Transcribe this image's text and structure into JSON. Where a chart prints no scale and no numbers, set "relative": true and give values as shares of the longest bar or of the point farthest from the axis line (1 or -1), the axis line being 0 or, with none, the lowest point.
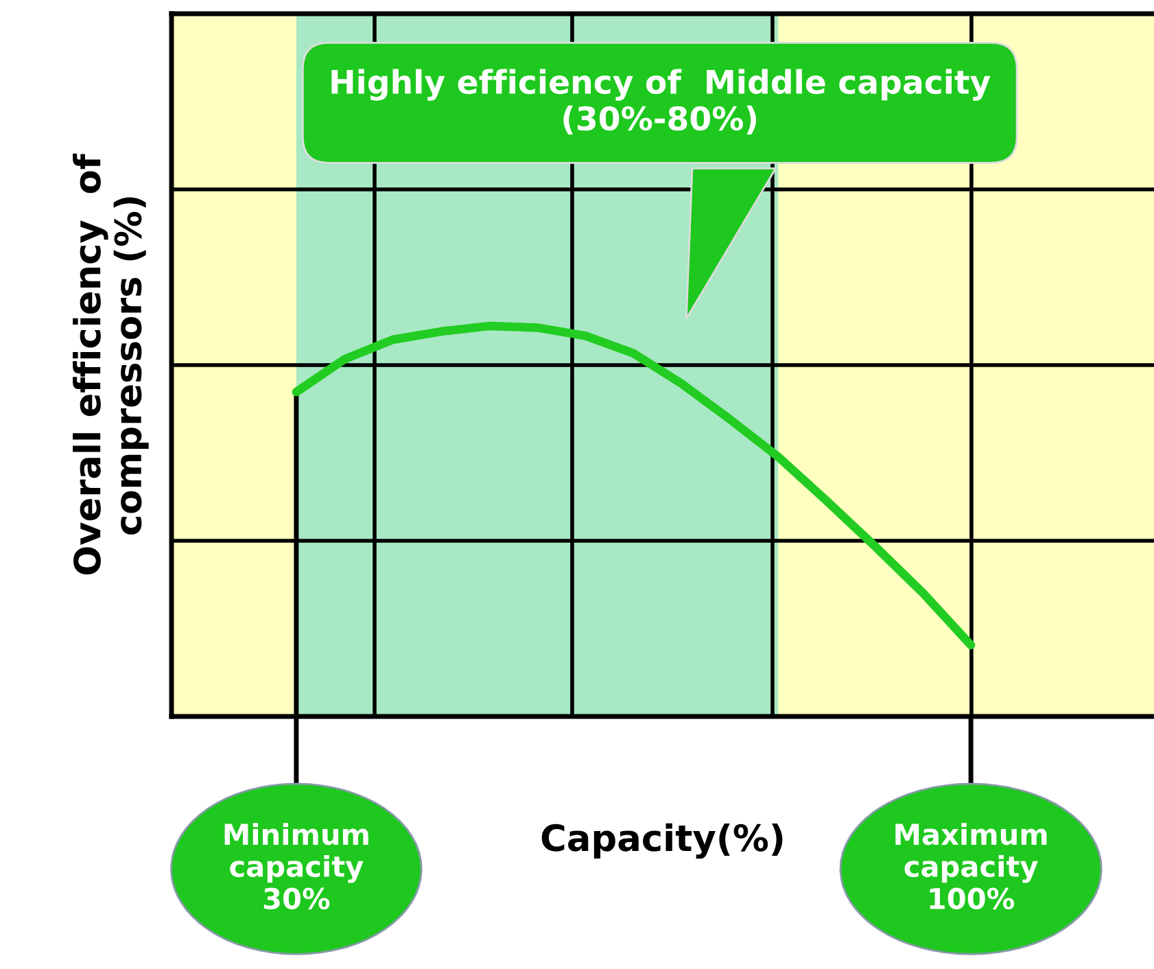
{
  "chart_data": {
    "type": "line",
    "relative": true,
    "xlabel": "Capacity(%)",
    "ylabel": "Overall efficiency  of\ncompressors (%)",
    "categories": [
      "Minimum\ncapacity\n30%",
      null,
      null,
      null,
      null,
      null,
      null,
      null,
      null,
      null,
      null,
      null,
      null,
      null,
      "Maximum\ncapacity\n100%"
    ],
    "series": [
      {
        "color": "#22cc22",
        "values": [
          0.831,
          0.915,
          0.965,
          0.986,
          1.0,
          0.996,
          0.975,
          0.93,
          0.852,
          0.761,
          0.665,
          0.553,
          0.437,
          0.317,
          0.183
        ]
      }
    ],
    "tick_labels": "x",
    "grid": true,
    "line_style": "solid",
    "marker": "none",
    "annotations": [
      "Highly efficiency of  Middle capacity\n(30%-80%)"
    ]
  }
}
